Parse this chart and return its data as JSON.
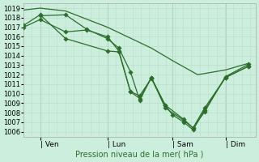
{
  "bg_color": "#cceedd",
  "grid_color_minor": "#bbddcc",
  "grid_color_major": "#aaccbb",
  "line_color": "#2d6e2d",
  "ylim": [
    1005.5,
    1019.5
  ],
  "yticks": [
    1006,
    1007,
    1008,
    1009,
    1010,
    1011,
    1012,
    1013,
    1014,
    1015,
    1016,
    1017,
    1018,
    1019
  ],
  "xlabel": "Pression niveau de la mer( hPa )",
  "xtick_labels": [
    "| Ven",
    "| Lun",
    "| Sam",
    "| Dim"
  ],
  "xtick_pos": [
    0.07,
    0.36,
    0.64,
    0.87
  ],
  "xlim": [
    0.0,
    1.0
  ],
  "smooth_x": [
    0.0,
    0.07,
    0.18,
    0.36,
    0.55,
    0.64,
    0.75,
    0.87,
    0.97
  ],
  "smooth_y": [
    1018.8,
    1019.0,
    1018.7,
    1017.0,
    1014.8,
    1013.5,
    1012.0,
    1012.5,
    1013.2
  ],
  "s1_x": [
    0.0,
    0.07,
    0.18,
    0.36,
    0.41,
    0.46,
    0.5,
    0.55,
    0.61,
    0.64,
    0.69,
    0.73,
    0.78,
    0.87,
    0.97
  ],
  "s1_y": [
    1017.2,
    1018.3,
    1015.8,
    1014.5,
    1014.4,
    1010.2,
    1009.8,
    1011.6,
    1008.8,
    1007.8,
    1007.0,
    1006.2,
    1008.3,
    1011.7,
    1012.9
  ],
  "s2_x": [
    0.07,
    0.18,
    0.27,
    0.36,
    0.41,
    0.46,
    0.5,
    0.55,
    0.61,
    0.69,
    0.73,
    0.78,
    0.87,
    0.97
  ],
  "s2_y": [
    1018.2,
    1018.3,
    1016.8,
    1015.8,
    1014.8,
    1012.3,
    1009.3,
    1011.7,
    1008.8,
    1007.3,
    1006.4,
    1008.5,
    1011.7,
    1012.9
  ],
  "s3_x": [
    0.0,
    0.07,
    0.18,
    0.27,
    0.36,
    0.41,
    0.46,
    0.5,
    0.55,
    0.61,
    0.69,
    0.73,
    0.78,
    0.87,
    0.97
  ],
  "s3_y": [
    1017.0,
    1017.8,
    1016.5,
    1016.7,
    1016.0,
    1014.5,
    1010.2,
    1009.5,
    1011.7,
    1008.5,
    1007.2,
    1006.4,
    1008.1,
    1011.8,
    1013.1
  ]
}
